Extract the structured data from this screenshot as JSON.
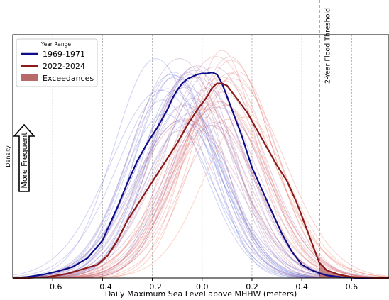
{
  "chart_data": {
    "type": "line",
    "title": "",
    "xlabel": "Daily Maximum Sea Level above MHHW (meters)",
    "ylabel": "Density",
    "xlim": [
      -0.76,
      0.75
    ],
    "ylim": [
      0,
      1.1
    ],
    "xticks": [
      -0.6,
      -0.4,
      -0.2,
      0.0,
      0.2,
      0.4,
      0.6
    ],
    "xtick_labels": [
      "−0.6",
      "−0.4",
      "−0.2",
      "0.0",
      "0.2",
      "0.4",
      "0.6"
    ],
    "grid": "vertical dashed",
    "threshold": {
      "x": 0.47,
      "label": "2-Year Flood Threshold"
    },
    "arrow_label": "More Frequent",
    "legend": {
      "title": "Year Range",
      "position": "top-left",
      "entries": [
        {
          "label": "1969-1971",
          "color": "#0d0d8a",
          "kind": "line"
        },
        {
          "label": "2022-2024",
          "color": "#8b1a1a",
          "kind": "line"
        },
        {
          "label": "Exceedances",
          "color": "#b86a6a",
          "kind": "patch"
        }
      ]
    },
    "series": [
      {
        "name": "1969-1971",
        "color": "#0d0d8a",
        "x": [
          -0.76,
          -0.7,
          -0.64,
          -0.58,
          -0.52,
          -0.46,
          -0.4,
          -0.34,
          -0.3,
          -0.26,
          -0.22,
          -0.18,
          -0.14,
          -0.12,
          -0.1,
          -0.08,
          -0.06,
          -0.04,
          -0.02,
          0.0,
          0.02,
          0.04,
          0.06,
          0.08,
          0.1,
          0.12,
          0.14,
          0.16,
          0.18,
          0.2,
          0.24,
          0.28,
          0.32,
          0.36,
          0.4,
          0.44,
          0.47,
          0.5,
          0.56,
          0.62,
          0.7,
          0.75
        ],
        "y": [
          0.0,
          0.005,
          0.015,
          0.03,
          0.05,
          0.09,
          0.17,
          0.32,
          0.43,
          0.53,
          0.61,
          0.68,
          0.76,
          0.81,
          0.85,
          0.88,
          0.9,
          0.91,
          0.92,
          0.925,
          0.925,
          0.93,
          0.92,
          0.88,
          0.82,
          0.76,
          0.7,
          0.64,
          0.57,
          0.5,
          0.4,
          0.3,
          0.2,
          0.12,
          0.06,
          0.035,
          0.022,
          0.012,
          0.004,
          0.0,
          0.0,
          0.0
        ]
      },
      {
        "name": "2022-2024",
        "color": "#8b1a1a",
        "x": [
          -0.76,
          -0.7,
          -0.62,
          -0.54,
          -0.48,
          -0.42,
          -0.38,
          -0.34,
          -0.3,
          -0.26,
          -0.22,
          -0.18,
          -0.14,
          -0.1,
          -0.06,
          -0.02,
          0.0,
          0.02,
          0.04,
          0.06,
          0.08,
          0.1,
          0.12,
          0.14,
          0.18,
          0.22,
          0.26,
          0.3,
          0.34,
          0.38,
          0.42,
          0.45,
          0.47,
          0.5,
          0.55,
          0.6,
          0.65,
          0.7,
          0.75
        ],
        "y": [
          0.0,
          0.0,
          0.005,
          0.02,
          0.04,
          0.06,
          0.1,
          0.17,
          0.26,
          0.33,
          0.4,
          0.47,
          0.54,
          0.61,
          0.69,
          0.76,
          0.79,
          0.82,
          0.86,
          0.88,
          0.88,
          0.87,
          0.84,
          0.81,
          0.75,
          0.67,
          0.59,
          0.51,
          0.44,
          0.34,
          0.22,
          0.13,
          0.07,
          0.035,
          0.015,
          0.005,
          0.002,
          0.0,
          0.0
        ]
      }
    ]
  }
}
